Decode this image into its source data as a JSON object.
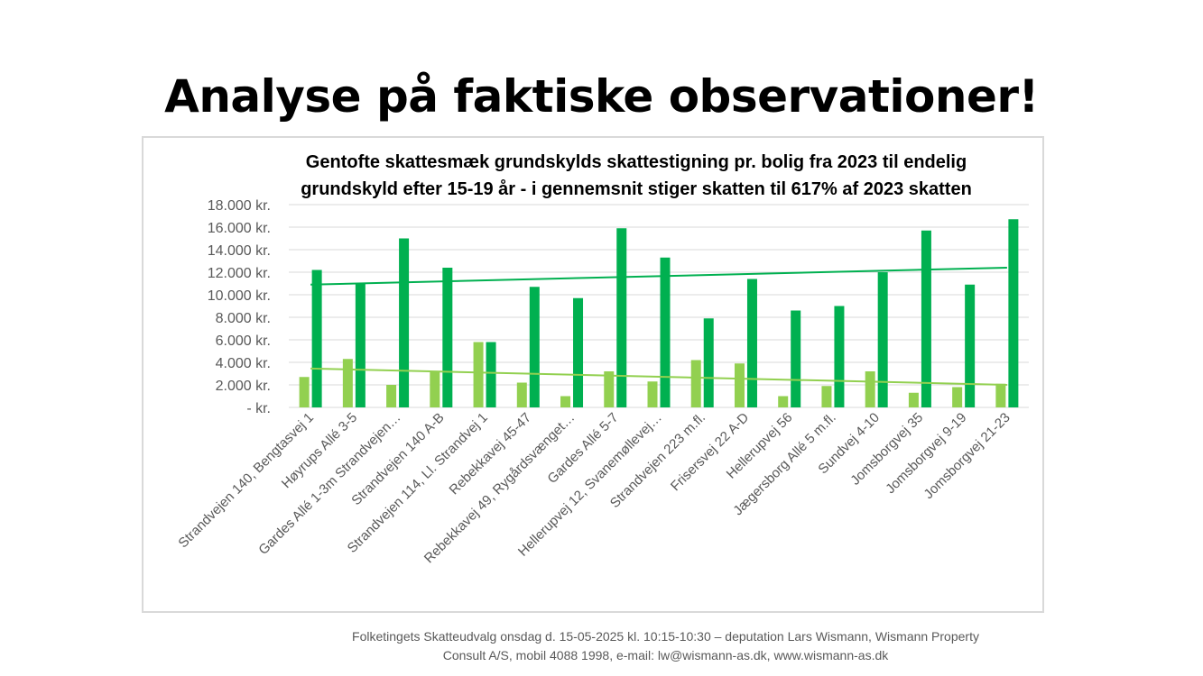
{
  "slide": {
    "title": "Analyse på faktiske observationer!",
    "footer_line1": "Folketingets Skatteudvalg onsdag d. 15-05-2025 kl. 10:15-10:30 –  deputation Lars Wismann, Wismann Property",
    "footer_line2": "Consult A/S, mobil 4088 1998, e-mail: lw@wismann-as.dk, www.wismann-as.dk"
  },
  "chart_data": {
    "type": "bar",
    "title_line1": "Gentofte skattesmæk grundskylds skattestigning pr. bolig  fra 2023 til endelig",
    "title_line2": "grundskyld efter 15-19 år - i gennemsnit stiger skatten til 617% af 2023 skatten",
    "categories": [
      "Strandvejen 140, Bengtasvej 1",
      "Høyrups Allé 3-5",
      "Gardes Allé 1-3m Strandvejen…",
      "Strandvejen 140 A-B",
      "Strandvejen 114, Ll. Strandvej 1",
      "Rebekkavej 45-47",
      "Rebekkavej 49, Rygårdsvænget…",
      "Gardes Allé 5-7",
      "Hellerupvej 12, Svanemøllevej…",
      "Strandvejen 223 m.fl.",
      "Frisersvej 22 A-D",
      "Hellerupvej 56",
      "Jægersborg Allé 5 m.fl.",
      "Sundvej 4-10",
      "Jomsborgvej 35",
      "Jomsborgvej 9-19",
      "Jomsborgvej 21-23"
    ],
    "series": [
      {
        "values": [
          2700,
          4300,
          2000,
          3200,
          5800,
          2200,
          1000,
          3200,
          2300,
          4200,
          3900,
          1000,
          1900,
          3200,
          1300,
          1800,
          2100
        ],
        "color": "#92d050"
      },
      {
        "values": [
          12200,
          11000,
          15000,
          12400,
          5800,
          10700,
          9700,
          15900,
          13300,
          7900,
          11400,
          8600,
          9000,
          12000,
          15700,
          10900,
          16700
        ],
        "color": "#00b050"
      }
    ],
    "trendlines": [
      {
        "series_index": 0,
        "start": 3450,
        "end": 2000,
        "color": "#92d050"
      },
      {
        "series_index": 1,
        "start": 10900,
        "end": 12400,
        "color": "#00b050"
      }
    ],
    "y_ticks": [
      "- kr.",
      "2.000 kr.",
      "4.000 kr.",
      "6.000 kr.",
      "8.000 kr.",
      "10.000 kr.",
      "12.000 kr.",
      "14.000 kr.",
      "16.000 kr.",
      "18.000 kr."
    ],
    "ylim": [
      0,
      18000
    ],
    "grid": true,
    "legend": "none"
  }
}
